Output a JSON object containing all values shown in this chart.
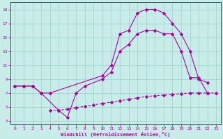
{
  "xlabel": "Windchill (Refroidissement éolien,°C)",
  "bg_color": "#c8ede8",
  "grid_color": "#a0cccc",
  "line_color": "#aa00aa",
  "line1_x": [
    0,
    1,
    2,
    3,
    4,
    10,
    11,
    12,
    13,
    14,
    15,
    16,
    17,
    18,
    19,
    20,
    21,
    22
  ],
  "line1_y": [
    8,
    8,
    8,
    7,
    7,
    9.5,
    11,
    15.5,
    16,
    18.5,
    19,
    19,
    18.5,
    17,
    15.5,
    13,
    9,
    8.5
  ],
  "line2_x": [
    0,
    1,
    2,
    3,
    5,
    6,
    7,
    8,
    10,
    11,
    12,
    13,
    14,
    15,
    16,
    17,
    18,
    19,
    20,
    21,
    22
  ],
  "line2_y": [
    8,
    8,
    8,
    7,
    4.5,
    3.5,
    7,
    8,
    9,
    10,
    13,
    14,
    15.5,
    16,
    16,
    15.5,
    15.5,
    13,
    9.2,
    9.2,
    7
  ],
  "line3_x": [
    4,
    5,
    6,
    7,
    8,
    9,
    10,
    11,
    12,
    13,
    14,
    15,
    16,
    17,
    18,
    19,
    20,
    21,
    22,
    23
  ],
  "line3_y": [
    4.5,
    4.5,
    4.7,
    4.9,
    5.1,
    5.3,
    5.5,
    5.7,
    5.9,
    6.1,
    6.3,
    6.5,
    6.6,
    6.7,
    6.8,
    6.9,
    7.0,
    7.0,
    7.0,
    7.0
  ],
  "xlim": [
    -0.5,
    23.5
  ],
  "ylim": [
    2.5,
    20
  ],
  "xticks": [
    0,
    1,
    2,
    3,
    4,
    5,
    6,
    7,
    8,
    9,
    10,
    11,
    12,
    13,
    14,
    15,
    16,
    17,
    18,
    19,
    20,
    21,
    22,
    23
  ],
  "yticks": [
    3,
    5,
    7,
    9,
    11,
    13,
    15,
    17,
    19
  ]
}
